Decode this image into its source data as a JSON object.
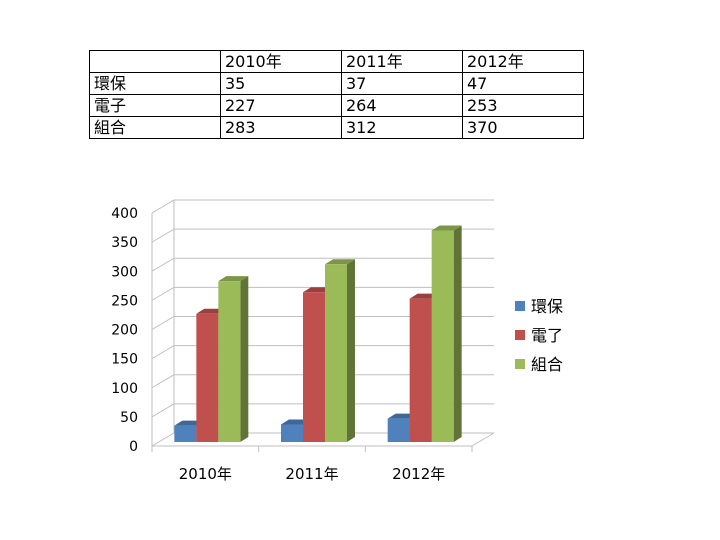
{
  "table": {
    "header": [
      "",
      "2010年",
      "2011年",
      "2012年"
    ],
    "rows": [
      {
        "label": "環保",
        "cells": [
          "35",
          "37",
          "47"
        ]
      },
      {
        "label": "電子",
        "cells": [
          "227",
          "264",
          "253"
        ]
      },
      {
        "label": "組合",
        "cells": [
          "283",
          "312",
          "370"
        ]
      }
    ]
  },
  "chart_data": {
    "type": "bar",
    "categories": [
      "2010年",
      "2011年",
      "2012年"
    ],
    "series": [
      {
        "name": "環保",
        "values": [
          35,
          37,
          47
        ],
        "color": "#4f81bd"
      },
      {
        "name": "電了",
        "values": [
          227,
          264,
          253
        ],
        "color": "#c0504d"
      },
      {
        "name": "組合",
        "values": [
          283,
          312,
          370
        ],
        "color": "#9bbb59"
      }
    ],
    "ylim": [
      0,
      400
    ],
    "yticks": [
      0,
      50,
      100,
      150,
      200,
      250,
      300,
      350,
      400
    ],
    "grid": true,
    "legend": "right",
    "style": "3d-clustered-column"
  }
}
